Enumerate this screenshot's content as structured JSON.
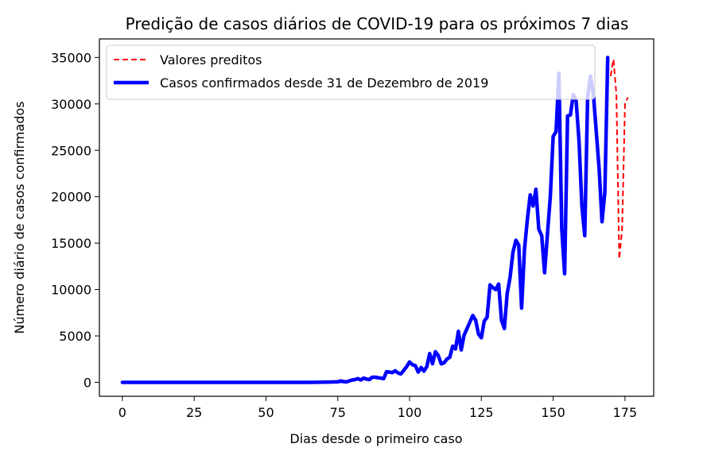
{
  "chart_data": {
    "type": "line",
    "title": "Predição de casos diários de COVID-19 para os próximos 7 dias",
    "xlabel": "Dias desde o primeiro caso",
    "ylabel": "Número diário de casos confirmados",
    "xlim": [
      -8,
      185
    ],
    "ylim": [
      -1500,
      37000
    ],
    "x_ticks": [
      0,
      25,
      50,
      75,
      100,
      125,
      150,
      175
    ],
    "y_ticks": [
      0,
      5000,
      10000,
      15000,
      20000,
      25000,
      30000,
      35000
    ],
    "grid": false,
    "legend_position": "top-left",
    "series": [
      {
        "name": "Valores preditos",
        "color": "#ff0000",
        "style": "dashed",
        "points": [
          [
            170,
            33000
          ],
          [
            171,
            34800
          ],
          [
            172,
            31000
          ],
          [
            173,
            13300
          ],
          [
            174,
            16500
          ],
          [
            175,
            30000
          ],
          [
            176,
            30700
          ]
        ]
      },
      {
        "name": "Casos confirmados desde 31 de Dezembro de 2019",
        "color": "#0000ff",
        "style": "solid",
        "points": [
          [
            0,
            0
          ],
          [
            10,
            0
          ],
          [
            20,
            0
          ],
          [
            30,
            0
          ],
          [
            40,
            0
          ],
          [
            50,
            0
          ],
          [
            60,
            0
          ],
          [
            65,
            0
          ],
          [
            70,
            20
          ],
          [
            73,
            40
          ],
          [
            75,
            60
          ],
          [
            76,
            150
          ],
          [
            77,
            80
          ],
          [
            78,
            50
          ],
          [
            79,
            150
          ],
          [
            80,
            250
          ],
          [
            81,
            300
          ],
          [
            82,
            400
          ],
          [
            83,
            250
          ],
          [
            84,
            450
          ],
          [
            85,
            350
          ],
          [
            86,
            300
          ],
          [
            87,
            550
          ],
          [
            88,
            550
          ],
          [
            89,
            500
          ],
          [
            90,
            450
          ],
          [
            91,
            400
          ],
          [
            92,
            1150
          ],
          [
            93,
            1100
          ],
          [
            94,
            1050
          ],
          [
            95,
            1250
          ],
          [
            96,
            1000
          ],
          [
            97,
            900
          ],
          [
            98,
            1300
          ],
          [
            99,
            1700
          ],
          [
            100,
            2200
          ],
          [
            101,
            1900
          ],
          [
            102,
            1800
          ],
          [
            103,
            1100
          ],
          [
            104,
            1600
          ],
          [
            105,
            1200
          ],
          [
            106,
            1700
          ],
          [
            107,
            3100
          ],
          [
            108,
            2000
          ],
          [
            109,
            3300
          ],
          [
            110,
            2900
          ],
          [
            111,
            2000
          ],
          [
            112,
            2100
          ],
          [
            113,
            2500
          ],
          [
            114,
            2700
          ],
          [
            115,
            3900
          ],
          [
            116,
            3600
          ],
          [
            117,
            5500
          ],
          [
            118,
            3500
          ],
          [
            119,
            5100
          ],
          [
            120,
            5800
          ],
          [
            121,
            6500
          ],
          [
            122,
            7200
          ],
          [
            123,
            6700
          ],
          [
            124,
            5200
          ],
          [
            125,
            4800
          ],
          [
            126,
            6600
          ],
          [
            127,
            7000
          ],
          [
            128,
            10500
          ],
          [
            129,
            10200
          ],
          [
            130,
            10000
          ],
          [
            131,
            10600
          ],
          [
            132,
            6700
          ],
          [
            133,
            5800
          ],
          [
            134,
            9600
          ],
          [
            135,
            11300
          ],
          [
            136,
            14000
          ],
          [
            137,
            15300
          ],
          [
            138,
            14800
          ],
          [
            139,
            8000
          ],
          [
            140,
            14300
          ],
          [
            141,
            17500
          ],
          [
            142,
            20200
          ],
          [
            143,
            19000
          ],
          [
            144,
            20800
          ],
          [
            145,
            16500
          ],
          [
            146,
            15800
          ],
          [
            147,
            11800
          ],
          [
            148,
            16000
          ],
          [
            149,
            20000
          ],
          [
            150,
            26500
          ],
          [
            151,
            27000
          ],
          [
            152,
            33300
          ],
          [
            153,
            16500
          ],
          [
            154,
            11700
          ],
          [
            155,
            28700
          ],
          [
            156,
            28800
          ],
          [
            157,
            31000
          ],
          [
            158,
            30300
          ],
          [
            159,
            26000
          ],
          [
            160,
            19000
          ],
          [
            161,
            15800
          ],
          [
            162,
            30700
          ],
          [
            163,
            33000
          ],
          [
            164,
            31000
          ],
          [
            165,
            27000
          ],
          [
            166,
            23000
          ],
          [
            167,
            17300
          ],
          [
            168,
            20500
          ],
          [
            169,
            35000
          ]
        ]
      }
    ]
  }
}
